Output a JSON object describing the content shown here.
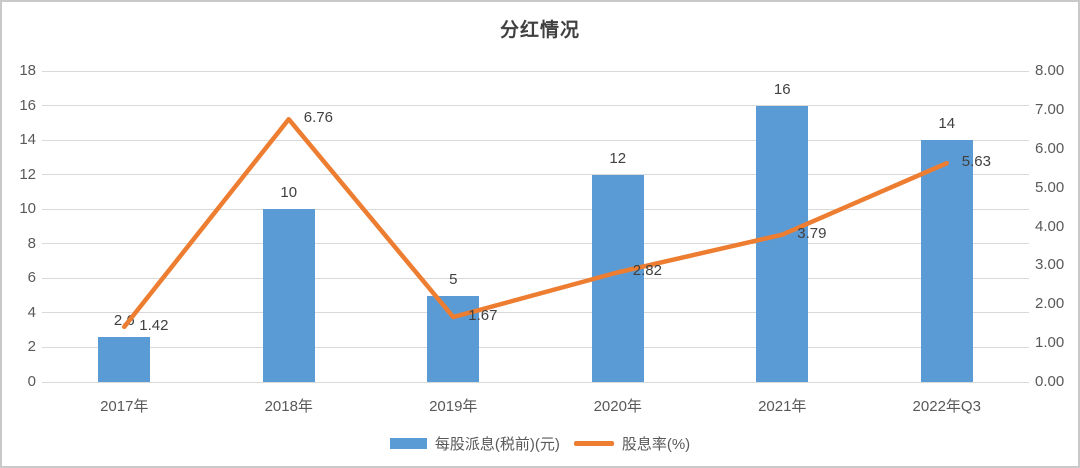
{
  "chart_data": {
    "type": "combo-bar-line",
    "title": "分红情况",
    "categories": [
      "2017年",
      "2018年",
      "2019年",
      "2020年",
      "2021年",
      "2022年Q3"
    ],
    "series": [
      {
        "name": "每股派息(税前)(元)",
        "type": "bar",
        "axis": "left",
        "color": "#5b9bd5",
        "values": [
          2.6,
          10,
          5,
          12,
          16,
          14
        ],
        "labels": [
          "2.6",
          "10",
          "5",
          "12",
          "16",
          "14"
        ]
      },
      {
        "name": "股息率(%)",
        "type": "line",
        "axis": "right",
        "color": "#ed7d31",
        "values": [
          1.42,
          6.76,
          1.67,
          2.82,
          3.79,
          5.63
        ],
        "labels": [
          "1.42",
          "6.76",
          "1.67",
          "2.82",
          "3.79",
          "5.63"
        ]
      }
    ],
    "left_axis": {
      "min": 0,
      "max": 18,
      "step": 2,
      "ticks": [
        "0",
        "2",
        "4",
        "6",
        "8",
        "10",
        "12",
        "14",
        "16",
        "18"
      ]
    },
    "right_axis": {
      "min": 0,
      "max": 8,
      "step": 1,
      "ticks": [
        "0.00",
        "1.00",
        "2.00",
        "3.00",
        "4.00",
        "5.00",
        "6.00",
        "7.00",
        "8.00"
      ]
    },
    "grid": true,
    "legend_position": "bottom",
    "colors": {
      "gridline": "#d9d9d9",
      "axis_text": "#595959",
      "data_label_text": "#404040",
      "frame_border": "#c9c9c9",
      "background": "#ffffff"
    }
  }
}
